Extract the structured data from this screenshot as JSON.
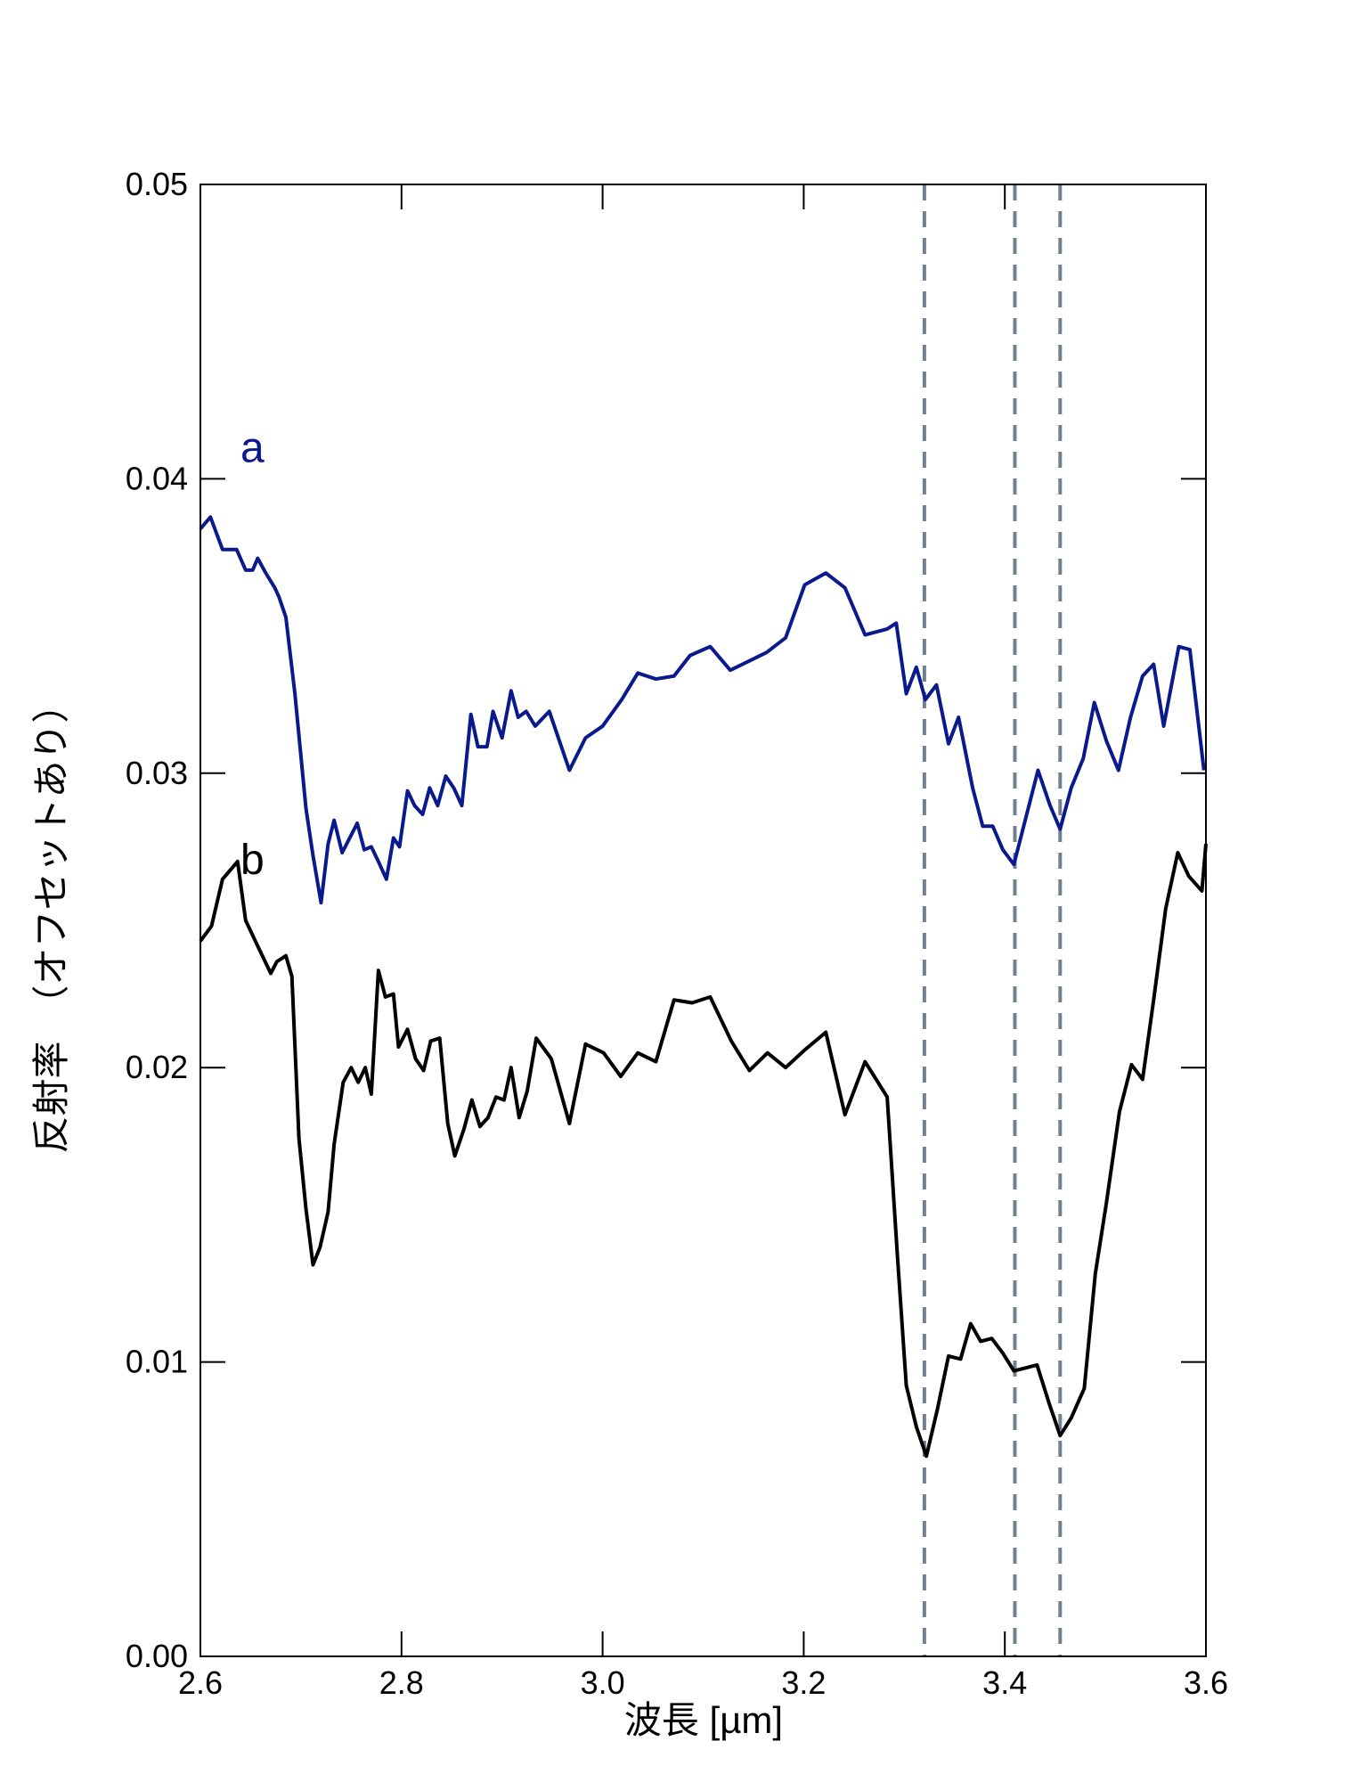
{
  "chart_data": {
    "type": "line",
    "xlabel": "波長 [µm]",
    "ylabel": "反射率　（オフセットあり）",
    "xlim": [
      2.6,
      3.6
    ],
    "ylim": [
      0,
      0.05
    ],
    "xticks": [
      2.6,
      2.8,
      {
        "value": 3,
        "label": "3.0"
      },
      3.2,
      3.4,
      3.6
    ],
    "yticks": [
      {
        "value": 0,
        "label": "0.00"
      },
      0.01,
      0.02,
      0.03,
      0.04,
      0.05
    ],
    "vlines": [
      3.32,
      3.41,
      3.455
    ],
    "vline_color": "#708090",
    "series": [
      {
        "name": "a",
        "color": "#0a1a8c",
        "x": [
          2.6,
          2.61,
          2.622,
          2.636,
          2.645,
          2.652,
          2.657,
          2.665,
          2.674,
          2.678,
          2.685,
          2.694,
          2.705,
          2.712,
          2.72,
          2.727,
          2.733,
          2.741,
          2.756,
          2.763,
          2.77,
          2.777,
          2.785,
          2.792,
          2.798,
          2.806,
          2.813,
          2.821,
          2.828,
          2.836,
          2.844,
          2.852,
          2.86,
          2.869,
          2.876,
          2.885,
          2.891,
          2.9,
          2.909,
          2.916,
          2.924,
          2.933,
          2.947,
          2.967,
          2.983,
          3.0,
          3.019,
          3.035,
          3.053,
          3.071,
          3.087,
          3.107,
          3.127,
          3.163,
          3.182,
          3.201,
          3.222,
          3.241,
          3.261,
          3.283,
          3.292,
          3.302,
          3.312,
          3.321,
          3.332,
          3.344,
          3.354,
          3.368,
          3.378,
          3.388,
          3.398,
          3.409,
          3.433,
          3.445,
          3.455,
          3.466,
          3.478,
          3.489,
          3.501,
          3.513,
          3.525,
          3.537,
          3.548,
          3.558,
          3.573,
          3.584,
          3.598
        ],
        "values": [
          0.0383,
          0.0387,
          0.0376,
          0.0376,
          0.0369,
          0.0369,
          0.0373,
          0.0368,
          0.0363,
          0.036,
          0.0353,
          0.0327,
          0.0288,
          0.0272,
          0.0256,
          0.0276,
          0.0284,
          0.0273,
          0.0283,
          0.0274,
          0.0275,
          0.027,
          0.0264,
          0.0278,
          0.0275,
          0.0294,
          0.0289,
          0.0286,
          0.0295,
          0.0289,
          0.0299,
          0.0295,
          0.0289,
          0.032,
          0.0309,
          0.0309,
          0.0321,
          0.0312,
          0.0328,
          0.0319,
          0.0321,
          0.0316,
          0.0321,
          0.0301,
          0.0312,
          0.0316,
          0.0325,
          0.0334,
          0.0332,
          0.0333,
          0.034,
          0.0343,
          0.0335,
          0.0341,
          0.0346,
          0.0364,
          0.0368,
          0.0363,
          0.0347,
          0.0349,
          0.0351,
          0.0327,
          0.0336,
          0.0325,
          0.033,
          0.031,
          0.0319,
          0.0295,
          0.0282,
          0.0282,
          0.0274,
          0.0269,
          0.0301,
          0.0289,
          0.0281,
          0.0295,
          0.0305,
          0.0324,
          0.0311,
          0.0301,
          0.0319,
          0.0333,
          0.0337,
          0.0316,
          0.0343,
          0.0342,
          0.0301
        ]
      },
      {
        "name": "b",
        "color": "#000000",
        "x": [
          2.6,
          2.611,
          2.622,
          2.637,
          2.645,
          2.656,
          2.67,
          2.676,
          2.685,
          2.691,
          2.698,
          2.705,
          2.712,
          2.719,
          2.727,
          2.733,
          2.742,
          2.75,
          2.757,
          2.764,
          2.77,
          2.777,
          2.784,
          2.792,
          2.797,
          2.806,
          2.814,
          2.822,
          2.829,
          2.838,
          2.846,
          2.853,
          2.862,
          2.87,
          2.878,
          2.886,
          2.894,
          2.902,
          2.909,
          2.917,
          2.925,
          2.934,
          2.949,
          2.967,
          2.983,
          3.001,
          3.018,
          3.035,
          3.053,
          3.071,
          3.089,
          3.107,
          3.128,
          3.146,
          3.164,
          3.182,
          3.201,
          3.222,
          3.241,
          3.261,
          3.283,
          3.293,
          3.302,
          3.312,
          3.322,
          3.333,
          3.344,
          3.356,
          3.366,
          3.376,
          3.387,
          3.398,
          3.409,
          3.421,
          3.432,
          3.444,
          3.455,
          3.466,
          3.479,
          3.49,
          3.501,
          3.514,
          3.526,
          3.537,
          3.548,
          3.56,
          3.572,
          3.583,
          3.596,
          3.6
        ],
        "values": [
          0.0243,
          0.0248,
          0.0264,
          0.027,
          0.025,
          0.0242,
          0.0232,
          0.0236,
          0.0238,
          0.0231,
          0.0176,
          0.0152,
          0.0133,
          0.0139,
          0.0151,
          0.0174,
          0.0195,
          0.02,
          0.0195,
          0.02,
          0.0191,
          0.0233,
          0.0224,
          0.0225,
          0.0207,
          0.0213,
          0.0203,
          0.0199,
          0.0209,
          0.021,
          0.0181,
          0.017,
          0.0179,
          0.0189,
          0.018,
          0.0183,
          0.019,
          0.0189,
          0.02,
          0.0183,
          0.0192,
          0.021,
          0.0203,
          0.0181,
          0.0208,
          0.0205,
          0.0197,
          0.0205,
          0.0202,
          0.0223,
          0.0222,
          0.0224,
          0.0209,
          0.0199,
          0.0205,
          0.02,
          0.0206,
          0.0212,
          0.0184,
          0.0202,
          0.019,
          0.0137,
          0.0092,
          0.0078,
          0.0068,
          0.0084,
          0.0102,
          0.0101,
          0.0113,
          0.0107,
          0.0108,
          0.0103,
          0.0097,
          0.0098,
          0.0099,
          0.0086,
          0.0075,
          0.0081,
          0.0091,
          0.013,
          0.0154,
          0.0185,
          0.0201,
          0.0196,
          0.0223,
          0.0254,
          0.0273,
          0.0265,
          0.026,
          0.0276
        ]
      }
    ]
  }
}
